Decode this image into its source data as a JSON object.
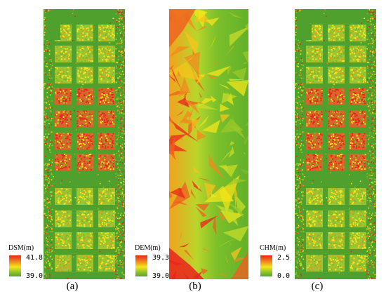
{
  "panels": [
    {
      "id": "a",
      "caption": "(a)",
      "legend": {
        "title": "DSM(m)",
        "max": "41.8",
        "min": "39.0"
      }
    },
    {
      "id": "b",
      "caption": "(b)",
      "legend": {
        "title": "DEM(m)",
        "max": "39.3",
        "min": "39.0"
      }
    },
    {
      "id": "c",
      "caption": "(c)",
      "legend": {
        "title": "CHM(m)",
        "max": "2.5",
        "min": "0.0"
      }
    }
  ],
  "colors": {
    "high": "#e8241b",
    "mid_high": "#f08a1e",
    "mid": "#f3e61a",
    "mid_low": "#8ec42a",
    "low": "#5aa22a"
  }
}
